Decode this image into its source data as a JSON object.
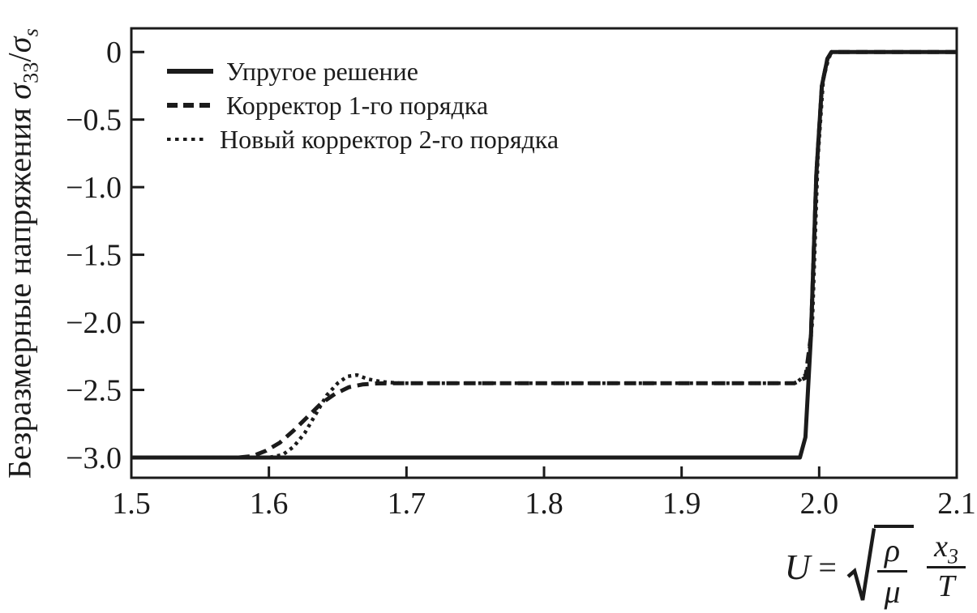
{
  "figure": {
    "background": "#ffffff",
    "ink_color": "#1b1b1b"
  },
  "axes": {
    "y": {
      "title": "Безразмерные напряжения",
      "sigma": "σ",
      "sigma_sub": "33",
      "slash": "/",
      "sigma2": "σ",
      "sigma2_sub": "s"
    },
    "x": {
      "var": "U",
      "eq": "=",
      "radical_icon": "√",
      "sqrt_num": "ρ",
      "sqrt_den": "μ",
      "num2": "x",
      "num2_sub": "3",
      "den2": "T"
    }
  },
  "chart_data": {
    "type": "line",
    "title": "",
    "xlabel": "U = √(ρ/μ) · x3/T",
    "ylabel": "Безразмерные напряжения σ33/σs",
    "grid": false,
    "legend_position": "top-left",
    "axis_color": "#1b1b1b",
    "xlim": [
      1.5,
      2.1
    ],
    "ylim": [
      -3.15,
      0.175
    ],
    "x_ticks": [
      {
        "v": 1.5,
        "label": "1.5"
      },
      {
        "v": 1.6,
        "label": "1.6"
      },
      {
        "v": 1.7,
        "label": "1.7"
      },
      {
        "v": 1.8,
        "label": "1.8"
      },
      {
        "v": 1.9,
        "label": "1.9"
      },
      {
        "v": 2.0,
        "label": "2.0"
      },
      {
        "v": 2.1,
        "label": "2.1"
      }
    ],
    "y_ticks": [
      {
        "v": 0,
        "label": "0"
      },
      {
        "v": -0.5,
        "label": "−0.5"
      },
      {
        "v": -1.0,
        "label": "−1.0"
      },
      {
        "v": -1.5,
        "label": "−1.5"
      },
      {
        "v": -2.0,
        "label": "−2.0"
      },
      {
        "v": -2.5,
        "label": "−2.5"
      },
      {
        "v": -3.0,
        "label": "−3.0"
      }
    ],
    "series": [
      {
        "name": "Упругое решение",
        "style": "solid",
        "width": 5,
        "dash": "",
        "points": [
          [
            1.5,
            -3
          ],
          [
            1.986,
            -3
          ],
          [
            1.99,
            -2.85
          ],
          [
            1.994,
            -2.1
          ],
          [
            1.998,
            -0.9
          ],
          [
            2.002,
            -0.25
          ],
          [
            2.006,
            -0.05
          ],
          [
            2.009,
            0
          ],
          [
            2.1,
            0
          ]
        ]
      },
      {
        "name": "Корректор 1-го порядка",
        "style": "dashed",
        "width": 5,
        "dash": "14 8",
        "points": [
          [
            1.5,
            -3
          ],
          [
            1.578,
            -3
          ],
          [
            1.588,
            -2.99
          ],
          [
            1.598,
            -2.95
          ],
          [
            1.608,
            -2.89
          ],
          [
            1.618,
            -2.8
          ],
          [
            1.628,
            -2.7
          ],
          [
            1.638,
            -2.6
          ],
          [
            1.648,
            -2.53
          ],
          [
            1.658,
            -2.48
          ],
          [
            1.668,
            -2.46
          ],
          [
            1.678,
            -2.452
          ],
          [
            1.69,
            -2.45
          ],
          [
            1.982,
            -2.45
          ],
          [
            1.99,
            -2.41
          ],
          [
            1.994,
            -2.1
          ],
          [
            1.998,
            -0.9
          ],
          [
            2.002,
            -0.25
          ],
          [
            2.006,
            -0.05
          ],
          [
            2.009,
            0
          ],
          [
            2.1,
            0
          ]
        ]
      },
      {
        "name": "Новый корректор 2-го порядка",
        "style": "dotted",
        "width": 4.5,
        "dash": "4 5",
        "points": [
          [
            1.5,
            -3
          ],
          [
            1.6,
            -3
          ],
          [
            1.61,
            -2.98
          ],
          [
            1.618,
            -2.92
          ],
          [
            1.626,
            -2.82
          ],
          [
            1.634,
            -2.68
          ],
          [
            1.642,
            -2.54
          ],
          [
            1.65,
            -2.45
          ],
          [
            1.657,
            -2.4
          ],
          [
            1.664,
            -2.39
          ],
          [
            1.672,
            -2.42
          ],
          [
            1.682,
            -2.44
          ],
          [
            1.695,
            -2.45
          ],
          [
            1.983,
            -2.45
          ],
          [
            1.991,
            -2.38
          ],
          [
            1.995,
            -2.0
          ],
          [
            1.999,
            -0.8
          ],
          [
            2.003,
            -0.2
          ],
          [
            2.007,
            -0.04
          ],
          [
            2.01,
            0
          ],
          [
            2.1,
            0
          ]
        ]
      }
    ]
  }
}
